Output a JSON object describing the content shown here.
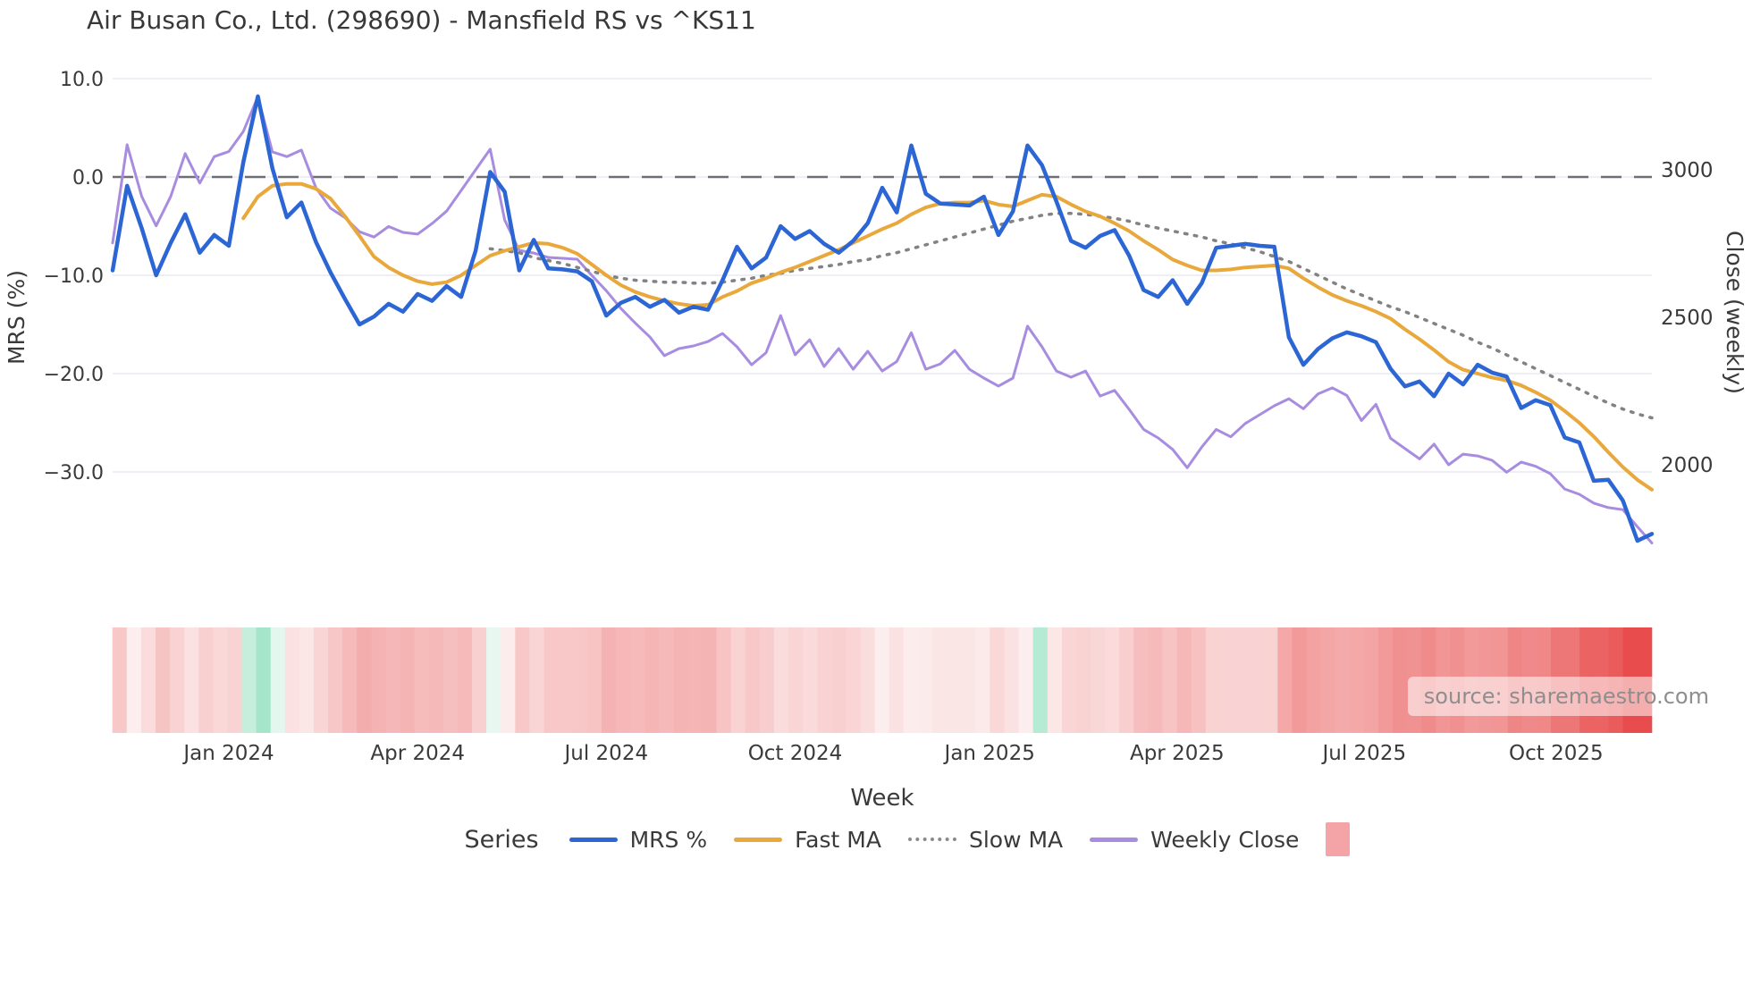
{
  "title": "Air Busan Co., Ltd. (298690) - Mansfield RS vs ^KS11",
  "source": {
    "label": "source: sharemaestro.com"
  },
  "legend": {
    "title": "Series",
    "items": [
      {
        "label": "MRS %",
        "type": "line",
        "color": "#2c66d4"
      },
      {
        "label": "Fast MA",
        "type": "line",
        "color": "#e9a83c"
      },
      {
        "label": "Slow MA",
        "type": "dotted",
        "color": "#8a8a8a"
      },
      {
        "label": "Weekly Close",
        "type": "line",
        "color": "#a78ce0"
      },
      {
        "label": "",
        "type": "patch",
        "color": "#f4a3a6"
      }
    ]
  },
  "chart_data": {
    "type": "line",
    "title": "Air Busan Co., Ltd. (298690) - Mansfield RS vs ^KS11",
    "x_axis": {
      "label": "Week",
      "tick_labels": [
        "Jan 2024",
        "Apr 2024",
        "Jul 2024",
        "Oct 2024",
        "Jan 2025",
        "Apr 2025",
        "Jul 2025",
        "Oct 2025"
      ],
      "tick_week_positions": [
        8,
        21,
        34,
        47,
        60.4,
        73.3,
        86.2,
        99.4
      ],
      "n_weeks": 107
    },
    "left_axis": {
      "label": "MRS (%)",
      "ticks": [
        10,
        0,
        -10,
        -20,
        -30
      ],
      "tick_labels": [
        "10.0",
        "0.0",
        "−10.0",
        "−20.0",
        "−30.0"
      ],
      "range": [
        -38,
        12
      ],
      "grid": true
    },
    "right_axis": {
      "label": "Close (weekly)",
      "ticks": [
        3000,
        2500,
        2000
      ],
      "tick_labels": [
        "3000",
        "2500",
        "2000"
      ],
      "grid": false
    },
    "zero_dashed_line": {
      "value": 0,
      "color": "#6e6e76"
    },
    "series": [
      {
        "name": "MRS %",
        "axis": "left",
        "style": "solid",
        "width": 4.5,
        "color": "#2c66d4",
        "start_week": 0,
        "values": [
          -9.5,
          -0.9,
          -5.2,
          -10.0,
          -6.7,
          -3.8,
          -7.7,
          -5.9,
          -7.0,
          1.5,
          8.2,
          0.9,
          -4.1,
          -2.6,
          -6.6,
          -9.7,
          -12.4,
          -15.0,
          -14.2,
          -12.9,
          -13.7,
          -11.9,
          -12.6,
          -11.1,
          -12.2,
          -7.5,
          0.5,
          -1.5,
          -9.5,
          -6.4,
          -9.3,
          -9.4,
          -9.6,
          -10.6,
          -14.1,
          -12.8,
          -12.2,
          -13.2,
          -12.5,
          -13.8,
          -13.2,
          -13.5,
          -10.5,
          -7.1,
          -9.3,
          -8.2,
          -5.0,
          -6.3,
          -5.5,
          -6.8,
          -7.7,
          -6.5,
          -4.7,
          -1.1,
          -3.6,
          3.2,
          -1.7,
          -2.7,
          -2.8,
          -2.9,
          -2.0,
          -5.9,
          -3.5,
          3.2,
          1.2,
          -2.5,
          -6.5,
          -7.2,
          -6.0,
          -5.4,
          -8.0,
          -11.5,
          -12.2,
          -10.5,
          -12.9,
          -10.8,
          -7.2,
          -7.0,
          -6.8,
          -7.0,
          -7.1,
          -16.3,
          -19.1,
          -17.5,
          -16.4,
          -15.8,
          -16.2,
          -16.8,
          -19.5,
          -21.3,
          -20.8,
          -22.3,
          -20.0,
          -21.1,
          -19.1,
          -19.9,
          -20.3,
          -23.5,
          -22.7,
          -23.2,
          -26.5,
          -27.0,
          -30.9,
          -30.8,
          -32.9,
          -37.0,
          -36.3
        ]
      },
      {
        "name": "Fast MA",
        "axis": "left",
        "style": "solid",
        "width": 4,
        "color": "#e9a83c",
        "start_week": 9,
        "values": [
          -4.2,
          -2.0,
          -0.9,
          -0.7,
          -0.7,
          -1.2,
          -2.2,
          -4.0,
          -6.0,
          -8.1,
          -9.2,
          -10.0,
          -10.6,
          -10.9,
          -10.7,
          -10.0,
          -9.0,
          -8.0,
          -7.5,
          -7.1,
          -6.7,
          -6.8,
          -7.2,
          -7.8,
          -8.9,
          -10.0,
          -11.0,
          -11.7,
          -12.2,
          -12.6,
          -12.9,
          -13.1,
          -13.0,
          -12.2,
          -11.6,
          -10.8,
          -10.3,
          -9.7,
          -9.2,
          -8.6,
          -8.0,
          -7.4,
          -6.7,
          -6.0,
          -5.3,
          -4.7,
          -3.8,
          -3.1,
          -2.7,
          -2.6,
          -2.6,
          -2.4,
          -2.8,
          -3.0,
          -2.4,
          -1.8,
          -2.0,
          -2.8,
          -3.5,
          -4.0,
          -4.7,
          -5.5,
          -6.5,
          -7.4,
          -8.4,
          -9.0,
          -9.5,
          -9.5,
          -9.4,
          -9.2,
          -9.1,
          -9.0,
          -9.3,
          -10.3,
          -11.2,
          -12.0,
          -12.6,
          -13.1,
          -13.7,
          -14.4,
          -15.5,
          -16.5,
          -17.6,
          -18.8,
          -19.6,
          -20.0,
          -20.4,
          -20.7,
          -21.2,
          -21.9,
          -22.7,
          -23.8,
          -25.0,
          -26.4,
          -28.0,
          -29.5,
          -30.8,
          -31.8
        ]
      },
      {
        "name": "Slow MA",
        "axis": "left",
        "style": "dotted",
        "width": 3.5,
        "color": "#828282",
        "start_week": 26,
        "values": [
          -7.3,
          -7.5,
          -7.7,
          -8.2,
          -8.5,
          -8.8,
          -9.2,
          -9.6,
          -10.0,
          -10.3,
          -10.5,
          -10.6,
          -10.7,
          -10.7,
          -10.8,
          -10.8,
          -10.7,
          -10.5,
          -10.3,
          -10.0,
          -9.8,
          -9.5,
          -9.3,
          -9.1,
          -8.9,
          -8.6,
          -8.4,
          -8.0,
          -7.7,
          -7.3,
          -6.9,
          -6.5,
          -6.1,
          -5.7,
          -5.3,
          -4.9,
          -4.5,
          -4.2,
          -3.9,
          -3.7,
          -3.7,
          -3.8,
          -4.0,
          -4.2,
          -4.5,
          -4.9,
          -5.2,
          -5.5,
          -5.8,
          -6.1,
          -6.5,
          -6.8,
          -7.2,
          -7.6,
          -8.1,
          -8.6,
          -9.3,
          -10.0,
          -10.7,
          -11.4,
          -12.0,
          -12.6,
          -13.2,
          -13.7,
          -14.3,
          -14.9,
          -15.5,
          -16.1,
          -16.8,
          -17.4,
          -18.1,
          -18.8,
          -19.5,
          -20.2,
          -20.9,
          -21.6,
          -22.3,
          -23.0,
          -23.6,
          -24.1,
          -24.5
        ]
      },
      {
        "name": "Weekly Close",
        "axis": "right",
        "style": "solid",
        "width": 3,
        "color": "#a78ce0",
        "start_week": 0,
        "values": [
          2752,
          3085,
          2910,
          2810,
          2910,
          3055,
          2955,
          3045,
          3062,
          3130,
          3248,
          3061,
          3045,
          3067,
          2939,
          2870,
          2838,
          2790,
          2772,
          2808,
          2788,
          2782,
          2818,
          2860,
          2930,
          3000,
          3070,
          2830,
          2727,
          2718,
          2703,
          2700,
          2697,
          2642,
          2590,
          2530,
          2480,
          2433,
          2370,
          2394,
          2403,
          2418,
          2445,
          2400,
          2339,
          2380,
          2506,
          2373,
          2424,
          2333,
          2394,
          2324,
          2385,
          2318,
          2350,
          2448,
          2324,
          2342,
          2388,
          2324,
          2294,
          2267,
          2294,
          2470,
          2400,
          2318,
          2297,
          2318,
          2233,
          2252,
          2188,
          2120,
          2091,
          2052,
          1990,
          2060,
          2120,
          2095,
          2140,
          2170,
          2200,
          2224,
          2190,
          2240,
          2261,
          2235,
          2150,
          2205,
          2090,
          2055,
          2020,
          2070,
          2000,
          2036,
          2030,
          2015,
          1975,
          2009,
          1995,
          1970,
          1918,
          1900,
          1870,
          1855,
          1848,
          1790,
          1735
        ]
      }
    ],
    "heatmap": {
      "description": "weekly color strip under chart; negative = red intensity, positive = green",
      "positive_color": "#a5e6cb",
      "negative_color": "#e84c4c",
      "neutral_color": "#fdf3f3",
      "values": [
        -0.26,
        -0.03,
        -0.14,
        -0.28,
        -0.19,
        -0.11,
        -0.21,
        -0.16,
        -0.19,
        0.3,
        0.6,
        0.1,
        -0.11,
        -0.07,
        -0.18,
        -0.27,
        -0.34,
        -0.42,
        -0.39,
        -0.36,
        -0.38,
        -0.33,
        -0.35,
        -0.31,
        -0.34,
        -0.21,
        0.08,
        -0.04,
        -0.26,
        -0.18,
        -0.26,
        -0.26,
        -0.27,
        -0.29,
        -0.39,
        -0.36,
        -0.34,
        -0.37,
        -0.35,
        -0.38,
        -0.37,
        -0.38,
        -0.29,
        -0.2,
        -0.26,
        -0.23,
        -0.14,
        -0.18,
        -0.15,
        -0.19,
        -0.21,
        -0.18,
        -0.13,
        -0.03,
        -0.1,
        -0.04,
        -0.05,
        -0.08,
        -0.08,
        -0.08,
        -0.06,
        -0.16,
        -0.1,
        -0.03,
        0.4,
        -0.07,
        -0.18,
        -0.2,
        -0.17,
        -0.15,
        -0.22,
        -0.32,
        -0.34,
        -0.29,
        -0.36,
        -0.3,
        -0.2,
        -0.19,
        -0.19,
        -0.19,
        -0.2,
        -0.45,
        -0.53,
        -0.49,
        -0.46,
        -0.44,
        -0.45,
        -0.47,
        -0.54,
        -0.59,
        -0.58,
        -0.62,
        -0.56,
        -0.59,
        -0.53,
        -0.55,
        -0.56,
        -0.65,
        -0.63,
        -0.64,
        -0.74,
        -0.75,
        -0.86,
        -0.86,
        -0.91,
        -1.0,
        -1.0
      ]
    },
    "style": {
      "grid_color": "#e7eaf0",
      "tick_text_color": "#3a3a3a",
      "background": "#ffffff"
    }
  }
}
